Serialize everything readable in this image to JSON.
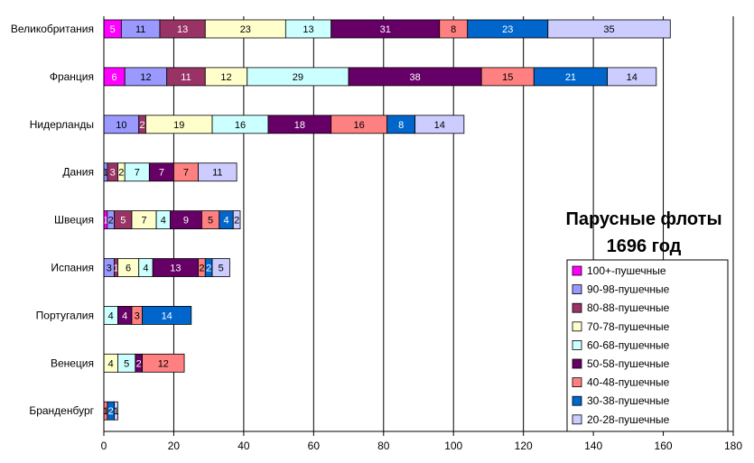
{
  "chart_data": {
    "type": "bar",
    "orientation": "horizontal",
    "stacked": true,
    "title": "Парусные флоты\n1696 год",
    "xlabel": "",
    "ylabel": "",
    "xlim": [
      0,
      180
    ],
    "xticks": [
      0,
      20,
      40,
      60,
      80,
      100,
      120,
      140,
      160,
      180
    ],
    "grid": "vertical",
    "legend_position": "right",
    "categories": [
      "Великобритания",
      "Франция",
      "Нидерланды",
      "Дания",
      "Швеция",
      "Испания",
      "Португалия",
      "Венеция",
      "Бранденбург"
    ],
    "series": [
      {
        "name": "100+-пушечные",
        "color": "#ff00ff",
        "text_color": "#ffffff",
        "values": [
          5,
          6,
          0,
          0,
          1,
          0,
          0,
          0,
          0
        ]
      },
      {
        "name": "90-98-пушечные",
        "color": "#9999ff",
        "text_color": "#000000",
        "values": [
          11,
          12,
          10,
          1,
          2,
          3,
          0,
          0,
          0
        ]
      },
      {
        "name": "80-88-пушечные",
        "color": "#993366",
        "text_color": "#ffffff",
        "values": [
          13,
          11,
          2,
          3,
          5,
          1,
          0,
          0,
          0
        ]
      },
      {
        "name": "70-78-пушечные",
        "color": "#ffffcc",
        "text_color": "#000000",
        "values": [
          23,
          12,
          19,
          2,
          7,
          6,
          0,
          4,
          0
        ]
      },
      {
        "name": "60-68-пушечные",
        "color": "#ccffff",
        "text_color": "#000000",
        "values": [
          13,
          29,
          16,
          7,
          4,
          4,
          4,
          5,
          0
        ]
      },
      {
        "name": "50-58-пушечные",
        "color": "#660066",
        "text_color": "#ffffff",
        "values": [
          31,
          38,
          18,
          7,
          9,
          13,
          4,
          2,
          0
        ]
      },
      {
        "name": "40-48-пушечные",
        "color": "#ff8080",
        "text_color": "#000000",
        "values": [
          8,
          15,
          16,
          7,
          5,
          2,
          3,
          12,
          1
        ]
      },
      {
        "name": "30-38-пушечные",
        "color": "#0066cc",
        "text_color": "#ffffff",
        "values": [
          23,
          21,
          8,
          0,
          4,
          2,
          14,
          0,
          2
        ]
      },
      {
        "name": "20-28-пушечные",
        "color": "#ccccff",
        "text_color": "#000000",
        "values": [
          35,
          14,
          14,
          11,
          2,
          5,
          0,
          0,
          1
        ]
      }
    ]
  }
}
